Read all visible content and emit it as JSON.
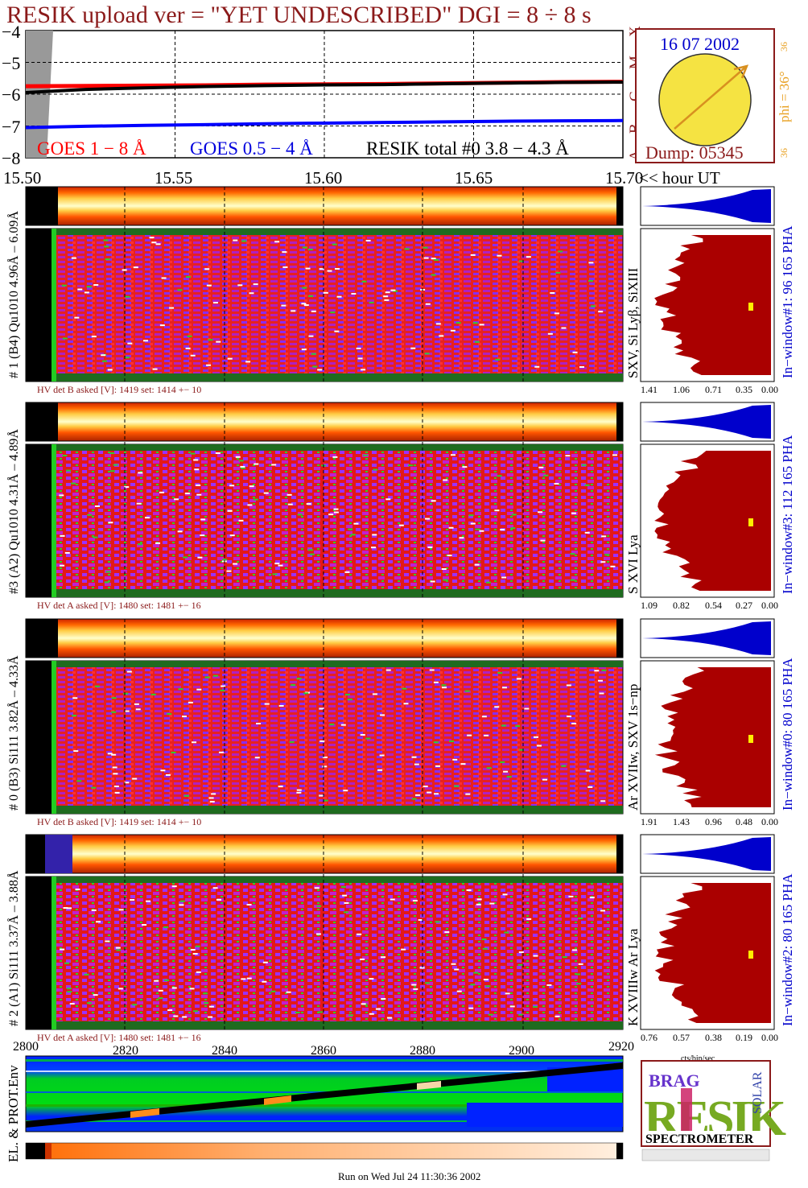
{
  "title": "RESIK upload ver = \"YET UNDESCRIBED\"  DGI =   8 ÷   8 s",
  "colors": {
    "maroon": "#8b1a1a",
    "goes_long": "#ff0000",
    "goes_short": "#0000ff",
    "resik_total": "#000000",
    "pha_blue": "#0000cc",
    "histogram_red": "#aa0000",
    "sun_yellow": "#f0e040",
    "sun_orange": "#e8a020"
  },
  "lightcurve": {
    "y_ticks": [
      "−4",
      "−5",
      "−6",
      "−7",
      "−8"
    ],
    "legend_goes_long": "GOES 1 − 8 Å",
    "legend_goes_short": "GOES 0.5 − 4 Å",
    "legend_resik": "RESIK total #0  3.8 − 4.3 Å",
    "class_letters": [
      "X",
      "M",
      "C",
      "B",
      "A"
    ],
    "time_ticks": [
      "15.50",
      "15.55",
      "15.60",
      "15.65",
      "15.70"
    ],
    "time_axis_label": "<< hour UT"
  },
  "chart_data": {
    "type": "line",
    "title": "RESIK upload ver = \"YET UNDESCRIBED\"  DGI =   8 ÷   8 s",
    "xlabel": "<< hour UT",
    "ylabel": "",
    "xlim": [
      15.5,
      15.7
    ],
    "ylim": [
      -8,
      -4
    ],
    "x": [
      15.5,
      15.52,
      15.54,
      15.56,
      15.58,
      15.6,
      15.62,
      15.64,
      15.66,
      15.68,
      15.7
    ],
    "series": [
      {
        "name": "GOES 1 − 8 Å",
        "values": [
          -5.75,
          -5.74,
          -5.73,
          -5.72,
          -5.7,
          -5.69,
          -5.68,
          -5.66,
          -5.64,
          -5.62,
          -5.61
        ]
      },
      {
        "name": "GOES 0.5 − 4 Å",
        "values": [
          -7.05,
          -7.01,
          -6.98,
          -6.96,
          -6.93,
          -6.91,
          -6.89,
          -6.87,
          -6.85,
          -6.84,
          -6.83
        ]
      },
      {
        "name": "RESIK total #0  3.8 − 4.3 Å",
        "values": [
          -5.95,
          -5.85,
          -5.8,
          -5.76,
          -5.73,
          -5.71,
          -5.7,
          -5.67,
          -5.65,
          -5.63,
          -5.62
        ]
      }
    ]
  },
  "sun": {
    "date": "16 07 2002",
    "phi_label": "phi = 36°",
    "num_top": "36",
    "num_bottom": "36",
    "dump": "Dump: 05345"
  },
  "panels": [
    {
      "detector_label": "# 1 (B4) Qu1010 4.96Å – 6.09Å",
      "lines_label": "SXV, Si Lyβ, SiXIII",
      "hv_text": "HV det B asked [V]:  1419 set:  1414  +−   10",
      "window_label": "In−window#1:   96 165 PHA",
      "hist_ticks": [
        "1.41",
        "1.06",
        "0.71",
        "0.35",
        "0.00"
      ]
    },
    {
      "detector_label": "#3 (A2) Qu1010  4.31Å – 4.89Å",
      "lines_label": "S XVI Lya",
      "hv_text": "HV det A asked [V]:  1480 set:  1481  +−   16",
      "window_label": "In−window#3:  112 165 PHA",
      "hist_ticks": [
        "1.09",
        "0.82",
        "0.54",
        "0.27",
        "0.00"
      ]
    },
    {
      "detector_label": "# 0 (B3) Si111  3.82Å – 4.33Å",
      "lines_label": "Ar XVIIw, SXV 1s−np",
      "hv_text": "HV det B asked [V]:  1419 set:  1414  +−   10",
      "window_label": "In−window#0:   80 165 PHA",
      "hist_ticks": [
        "1.91",
        "1.43",
        "0.96",
        "0.48",
        "0.00"
      ]
    },
    {
      "detector_label": "# 2 (A1) Si111  3.37Å – 3.88Å",
      "lines_label": "K XVIIIw  Ar Lya",
      "hv_text": "HV det A asked [V]:  1480 set:  1481  +−   16",
      "window_label": "In−window#2:   80 165 PHA",
      "hist_ticks": [
        "0.76",
        "0.57",
        "0.38",
        "0.19",
        "0.00"
      ]
    }
  ],
  "hist_axis_label": "cts/bin/sec",
  "seconds_ticks": [
    "2800",
    "2820",
    "2840",
    "2860",
    "2880",
    "2900",
    "2920"
  ],
  "env_label": "EL. & PROT.Env",
  "logo": {
    "line1": "BRAG",
    "big": "RESIK",
    "side": "SOLAR",
    "bottom": "SPECTROMETER"
  },
  "footer": "Run on Wed Jul 24 11:30:36 2002"
}
